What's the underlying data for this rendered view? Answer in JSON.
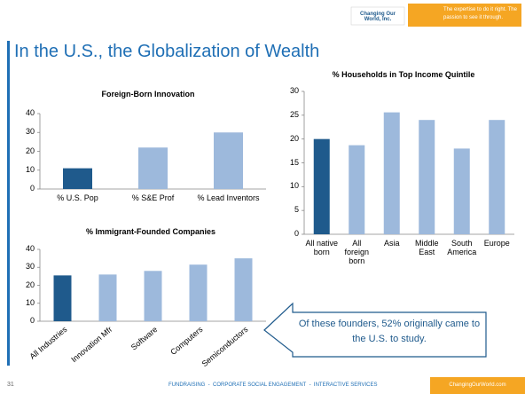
{
  "slide": {
    "title": "In the U.S., the Globalization of Wealth",
    "logo": "Changing Our World, Inc.",
    "tagline": "The expertise to do it right. The passion to see it through.",
    "page_number": "31",
    "footer": "FUNDRAISING  -  CORPORATE SOCIAL ENGAGEMENT  -  INTERACTIVE SERVICES",
    "website": "ChangingOurWorld.com",
    "callout": "Of these founders, 52% originally came to the U.S. to study."
  },
  "chart_data": [
    {
      "type": "bar",
      "title": "Foreign-Born Innovation",
      "categories": [
        "% U.S. Pop",
        "% S&E Prof",
        "% Lead Inventors"
      ],
      "values": [
        11,
        22,
        30
      ],
      "colors": [
        "#1f5a8c",
        "#9db9dc",
        "#9db9dc"
      ],
      "ylim": [
        0,
        40
      ],
      "yticks": [
        0,
        10,
        20,
        30,
        40
      ],
      "grid": false
    },
    {
      "type": "bar",
      "title": "% Households in Top Income Quintile",
      "categories": [
        "All native born",
        "All foreign born",
        "Asia",
        "Middle East",
        "South America",
        "Europe"
      ],
      "values": [
        20,
        18.7,
        25.6,
        24,
        18,
        24
      ],
      "colors": [
        "#1f5a8c",
        "#9db9dc",
        "#9db9dc",
        "#9db9dc",
        "#9db9dc",
        "#9db9dc"
      ],
      "ylim": [
        0,
        30
      ],
      "yticks": [
        0,
        5,
        10,
        15,
        20,
        25,
        30
      ],
      "grid": false
    },
    {
      "type": "bar",
      "title": "% Immigrant-Founded Companies",
      "categories": [
        "All Industries",
        "Innovation Mfr",
        "Software",
        "Computers",
        "Semiconductors"
      ],
      "values": [
        25.5,
        26,
        28,
        31.5,
        35
      ],
      "colors": [
        "#1f5a8c",
        "#9db9dc",
        "#9db9dc",
        "#9db9dc",
        "#9db9dc"
      ],
      "ylim": [
        0,
        40
      ],
      "yticks": [
        0,
        10,
        20,
        30,
        40
      ],
      "grid": false
    }
  ]
}
